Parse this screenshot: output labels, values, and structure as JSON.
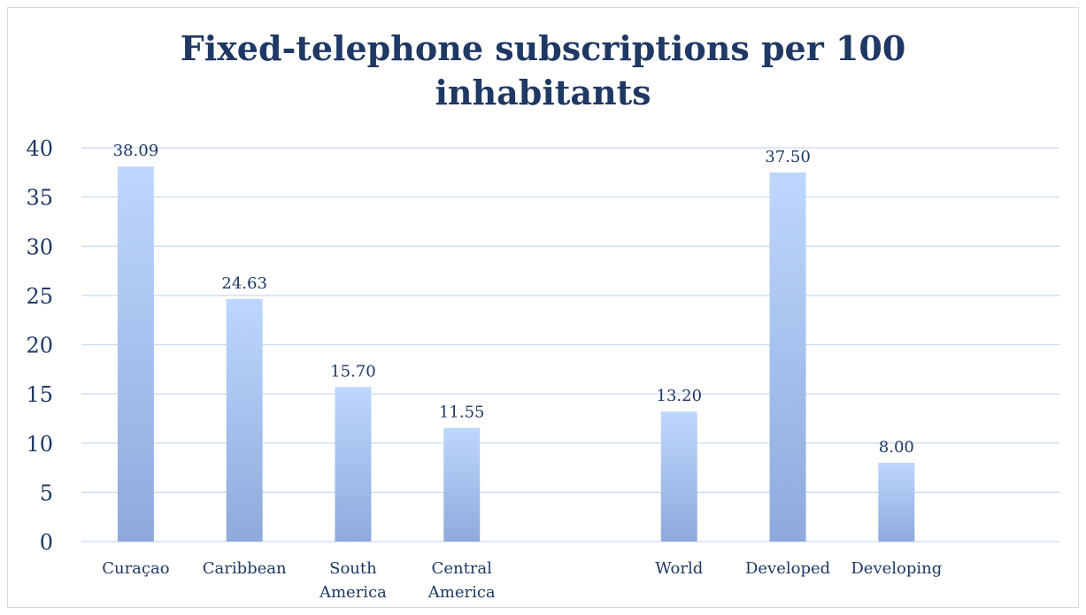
{
  "chart_data": {
    "type": "bar",
    "title_lines": [
      "Fixed-telephone subscriptions per 100",
      "inhabitants"
    ],
    "categories": [
      [
        "Curaçao"
      ],
      [
        "Caribbean"
      ],
      [
        "South",
        "America"
      ],
      [
        "Central",
        "America"
      ],
      [],
      [
        "World"
      ],
      [
        "Developed"
      ],
      [
        "Developing"
      ],
      []
    ],
    "values": [
      38.09,
      24.63,
      15.7,
      11.55,
      null,
      13.2,
      37.5,
      8.0,
      null
    ],
    "data_labels": [
      "38.09",
      "24.63",
      "15.70",
      "11.55",
      "",
      "13.20",
      "37.50",
      "8.00",
      ""
    ],
    "ylim": [
      0,
      40
    ],
    "yticks": [
      0,
      5,
      10,
      15,
      20,
      25,
      30,
      35,
      40
    ],
    "grid": true,
    "colors": {
      "bar_top": "#bdd7fe",
      "bar_bottom": "#8eaadc",
      "grid": "#c9daf0",
      "text": "#1f3864"
    }
  }
}
